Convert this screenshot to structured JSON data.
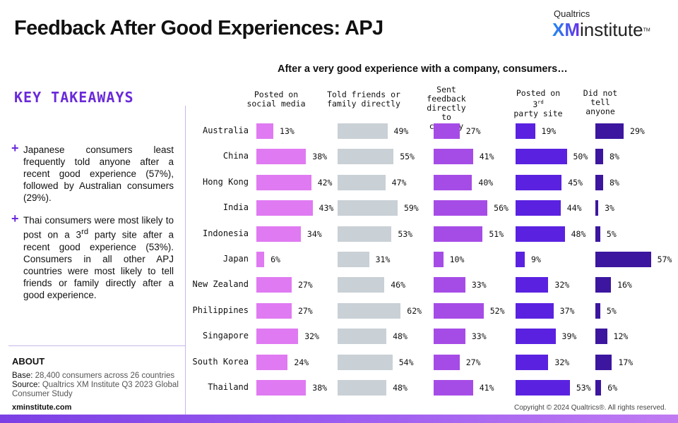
{
  "header": {
    "title": "Feedback After Good Experiences: APJ",
    "logo_top": "Qualtrics",
    "logo_xm": "XM",
    "logo_rest": "institute",
    "logo_tm": "TM"
  },
  "sidebar": {
    "heading": "KEY TAKEAWAYS",
    "takeaways": [
      {
        "html": "Japanese consumers least frequently told anyone after a recent good experience (57%), followed by Australian consumers (29%)."
      },
      {
        "html": "Thai consumers were most likely to post on a 3<sup>rd</sup> party site after a recent good experience (53%). Consumers in all other APJ countries were most likely to tell friends or family directly after a good experience."
      }
    ],
    "about_heading": "ABOUT",
    "base_label": "Base:",
    "base_text": "28,400 consumers across 26 countries",
    "source_label": "Source:",
    "source_text": "Qualtrics XM Institute Q3 2023 Global Consumer Study",
    "site": "xminstitute.com"
  },
  "footer": {
    "copyright": "Copyright © 2024 Qualtrics®. All rights reserved."
  },
  "chart_data": {
    "type": "bar",
    "title": "After a very good experience with a company, consumers…",
    "categories": [
      "Australia",
      "China",
      "Hong Kong",
      "India",
      "Indonesia",
      "Japan",
      "New Zealand",
      "Philippines",
      "Singapore",
      "South Korea",
      "Thailand"
    ],
    "series": [
      {
        "name": "Posted on social media",
        "color": "#e07af2",
        "values": [
          13,
          38,
          42,
          43,
          34,
          6,
          27,
          27,
          32,
          24,
          38
        ]
      },
      {
        "name": "Told friends or family directly",
        "color": "#c9d0d6",
        "values": [
          49,
          55,
          47,
          59,
          53,
          31,
          46,
          62,
          48,
          54,
          48
        ]
      },
      {
        "name": "Sent feedback directly to company",
        "color": "#a64ce6",
        "values": [
          27,
          41,
          40,
          56,
          51,
          10,
          33,
          52,
          33,
          27,
          41
        ]
      },
      {
        "name": "Posted on 3rd party site",
        "color": "#5a22e0",
        "values": [
          19,
          50,
          45,
          44,
          48,
          9,
          32,
          37,
          39,
          32,
          53
        ]
      },
      {
        "name": "Did not tell anyone",
        "color": "#3c169f",
        "values": [
          29,
          8,
          8,
          3,
          5,
          57,
          16,
          5,
          12,
          17,
          6
        ]
      }
    ],
    "unit": "%"
  }
}
